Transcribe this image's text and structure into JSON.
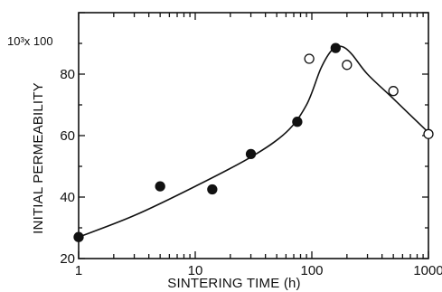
{
  "chart_data": {
    "type": "scatter",
    "title": "",
    "xlabel": "SINTERING TIME (h)",
    "ylabel": "INITIAL PERMEABILITY",
    "y_scale_note": "10³x 100",
    "x_scale": "log",
    "xlim": [
      1,
      1000
    ],
    "ylim": [
      20,
      100
    ],
    "x_ticks": [
      1,
      10,
      100,
      1000
    ],
    "x_tick_labels": [
      "1",
      "10",
      "100",
      "1000"
    ],
    "y_ticks": [
      20,
      40,
      60,
      80
    ],
    "y_tick_labels": [
      "20",
      "40",
      "60",
      "80"
    ],
    "grid": false,
    "legend": "none",
    "series": [
      {
        "marker": "filled-circle",
        "x": [
          1,
          5,
          14,
          30,
          75,
          160
        ],
        "y": [
          27,
          43.5,
          42.5,
          54,
          64.5,
          88.5
        ]
      },
      {
        "marker": "open-circle",
        "x": [
          95,
          200,
          500,
          1000
        ],
        "y": [
          85,
          83,
          74.5,
          60.5
        ]
      }
    ],
    "fit_curve": {
      "x": [
        1,
        3,
        10,
        30,
        60,
        90,
        120,
        150,
        180,
        220,
        300,
        500,
        1000
      ],
      "y": [
        27,
        34,
        43.5,
        53,
        61,
        70,
        82,
        88,
        89,
        86.5,
        80,
        72,
        61
      ]
    }
  }
}
